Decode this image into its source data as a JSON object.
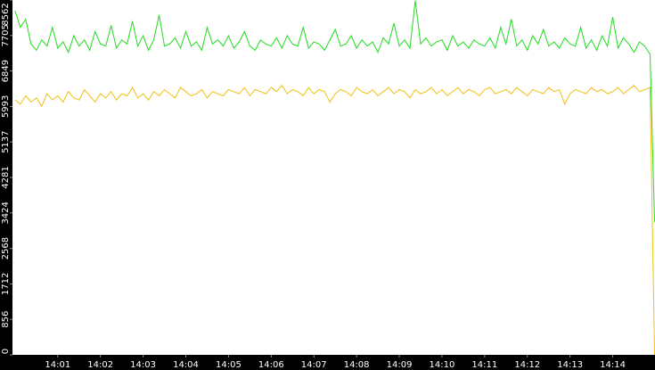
{
  "chart_data": {
    "type": "line",
    "x": [
      0,
      0.125,
      0.25,
      0.375,
      0.5,
      0.625,
      0.75,
      0.875,
      1,
      1.125,
      1.25,
      1.375,
      1.5,
      1.625,
      1.75,
      1.875,
      2,
      2.125,
      2.25,
      2.375,
      2.5,
      2.625,
      2.75,
      2.875,
      3,
      3.125,
      3.25,
      3.375,
      3.5,
      3.625,
      3.75,
      3.875,
      4,
      4.125,
      4.25,
      4.375,
      4.5,
      4.625,
      4.75,
      4.875,
      5,
      5.125,
      5.25,
      5.375,
      5.5,
      5.625,
      5.75,
      5.875,
      6,
      6.125,
      6.25,
      6.375,
      6.5,
      6.625,
      6.75,
      6.875,
      7,
      7.125,
      7.25,
      7.375,
      7.5,
      7.625,
      7.75,
      7.875,
      8,
      8.125,
      8.25,
      8.375,
      8.5,
      8.625,
      8.75,
      8.875,
      9,
      9.125,
      9.25,
      9.375,
      9.5,
      9.625,
      9.75,
      9.875,
      10,
      10.125,
      10.25,
      10.375,
      10.5,
      10.625,
      10.75,
      10.875,
      11,
      11.125,
      11.25,
      11.375,
      11.5,
      11.625,
      11.75,
      11.875,
      12,
      12.125,
      12.25,
      12.375,
      12.5,
      12.625,
      12.75,
      12.875,
      13,
      13.125,
      13.25,
      13.375,
      13.5,
      13.625,
      13.75,
      13.875,
      14,
      14.125,
      14.25,
      14.375,
      14.5,
      14.625,
      14.75,
      14.875,
      14.98
    ],
    "series": [
      {
        "color": "#1edc1e",
        "values": [
          8300,
          7900,
          8100,
          7500,
          7350,
          7600,
          7450,
          7900,
          7400,
          7550,
          7300,
          7700,
          7450,
          7600,
          7350,
          7800,
          7500,
          7450,
          7950,
          7400,
          7600,
          7500,
          8050,
          7450,
          7700,
          7350,
          7600,
          8200,
          7450,
          7500,
          7650,
          7400,
          7800,
          7450,
          7550,
          7350,
          7900,
          7500,
          7600,
          7450,
          7700,
          7400,
          7550,
          7800,
          7450,
          7350,
          7600,
          7500,
          7450,
          7650,
          7400,
          7700,
          7500,
          7450,
          7900,
          7400,
          7550,
          7500,
          7350,
          7600,
          7850,
          7450,
          7500,
          7700,
          7400,
          7600,
          7450,
          7550,
          7300,
          7650,
          7500,
          8000,
          7450,
          7600,
          7400,
          8550,
          7500,
          7650,
          7450,
          7550,
          7600,
          7350,
          7700,
          7450,
          7550,
          7400,
          7600,
          7500,
          7450,
          7650,
          7400,
          7900,
          7500,
          8100,
          7450,
          7600,
          7350,
          7700,
          7500,
          7850,
          7450,
          7550,
          7400,
          7650,
          7500,
          7450,
          7900,
          7400,
          7600,
          7350,
          7700,
          7450,
          8150,
          7400,
          7650,
          7500,
          7300,
          7550,
          7450,
          7250,
          3200
        ]
      },
      {
        "color": "#f0c010",
        "values": [
          6150,
          6050,
          6250,
          6100,
          6200,
          6000,
          6300,
          6150,
          6250,
          6100,
          6350,
          6200,
          6150,
          6400,
          6250,
          6100,
          6300,
          6200,
          6350,
          6150,
          6300,
          6250,
          6450,
          6200,
          6300,
          6150,
          6350,
          6250,
          6400,
          6300,
          6200,
          6450,
          6350,
          6250,
          6300,
          6400,
          6200,
          6350,
          6300,
          6250,
          6400,
          6350,
          6300,
          6450,
          6250,
          6400,
          6350,
          6300,
          6450,
          6350,
          6500,
          6300,
          6400,
          6350,
          6250,
          6450,
          6300,
          6400,
          6350,
          6100,
          6300,
          6400,
          6350,
          6250,
          6450,
          6350,
          6300,
          6400,
          6250,
          6350,
          6450,
          6300,
          6400,
          6350,
          6200,
          6400,
          6300,
          6350,
          6450,
          6300,
          6400,
          6250,
          6350,
          6450,
          6300,
          6400,
          6350,
          6250,
          6400,
          6450,
          6300,
          6350,
          6400,
          6300,
          6450,
          6350,
          6250,
          6400,
          6350,
          6300,
          6450,
          6350,
          6400,
          6050,
          6300,
          6400,
          6350,
          6300,
          6450,
          6350,
          6400,
          6300,
          6350,
          6450,
          6300,
          6400,
          6500,
          6350,
          6400,
          6450,
          0
        ]
      }
    ],
    "xlim": [
      -0.06,
      14.99
    ],
    "xticks": [
      {
        "value": 1,
        "label": "14:01"
      },
      {
        "value": 2,
        "label": "14:02"
      },
      {
        "value": 3,
        "label": "14:03"
      },
      {
        "value": 4,
        "label": "14:04"
      },
      {
        "value": 5,
        "label": "14:05"
      },
      {
        "value": 6,
        "label": "14:06"
      },
      {
        "value": 7,
        "label": "14:07"
      },
      {
        "value": 8,
        "label": "14:08"
      },
      {
        "value": 9,
        "label": "14:09"
      },
      {
        "value": 10,
        "label": "14:10"
      },
      {
        "value": 11,
        "label": "14:11"
      },
      {
        "value": 12,
        "label": "14:12"
      },
      {
        "value": 13,
        "label": "14:13"
      },
      {
        "value": 14,
        "label": "14:14"
      }
    ],
    "ylim": [
      0,
      8562
    ],
    "yticks": [
      0,
      856,
      1712,
      2568,
      3424,
      4281,
      5137,
      5993,
      6849,
      7705,
      8562
    ]
  }
}
